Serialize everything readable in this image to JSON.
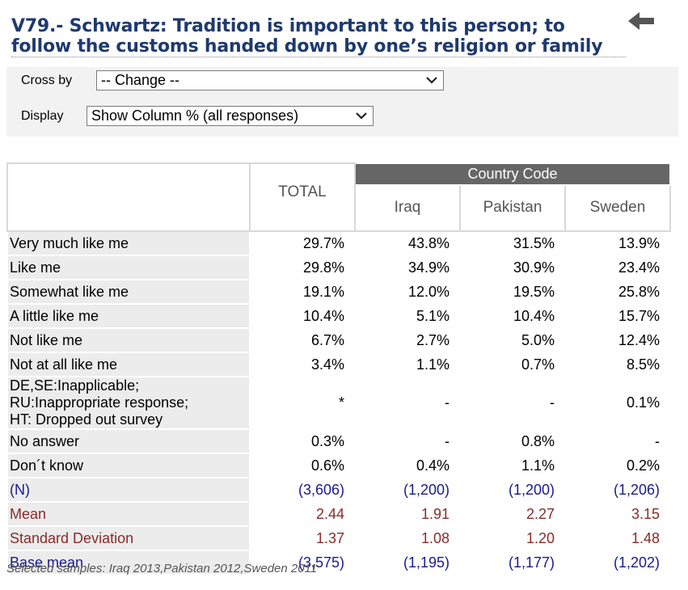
{
  "title": "V79.- Schwartz: Tradition is important to this person; to follow the customs handed down by one’s religion or family",
  "controls": {
    "cross_by_label": "Cross by",
    "cross_by_value": "-- Change --",
    "display_label": "Display",
    "display_value": "Show Column % (all responses)"
  },
  "table": {
    "group_header": "Country Code",
    "total_header": "TOTAL",
    "countries": [
      "Iraq",
      "Pakistan",
      "Sweden"
    ],
    "rows": [
      {
        "label": "Very much like me",
        "total": "29.7%",
        "values": [
          "43.8%",
          "31.5%",
          "13.9%"
        ]
      },
      {
        "label": "Like me",
        "total": "29.8%",
        "values": [
          "34.9%",
          "30.9%",
          "23.4%"
        ]
      },
      {
        "label": "Somewhat like me",
        "total": "19.1%",
        "values": [
          "12.0%",
          "19.5%",
          "25.8%"
        ]
      },
      {
        "label": "A little like me",
        "total": "10.4%",
        "values": [
          "5.1%",
          "10.4%",
          "15.7%"
        ]
      },
      {
        "label": "Not like me",
        "total": "6.7%",
        "values": [
          "2.7%",
          "5.0%",
          "12.4%"
        ]
      },
      {
        "label": "Not at all like me",
        "total": "3.4%",
        "values": [
          "1.1%",
          "0.7%",
          "8.5%"
        ]
      },
      {
        "label_lines": [
          "DE,SE:Inapplicable;",
          "RU:Inappropriate response;",
          "HT: Dropped out survey"
        ],
        "total": "*",
        "values": [
          "-",
          "-",
          "0.1%"
        ]
      },
      {
        "label": "No answer",
        "total": "0.3%",
        "values": [
          "-",
          "0.8%",
          "-"
        ]
      },
      {
        "label": "Don´t know",
        "total": "0.6%",
        "values": [
          "0.4%",
          "1.1%",
          "0.2%"
        ]
      }
    ],
    "n_row": {
      "label": "(N)",
      "total": "(3,606)",
      "values": [
        "(1,200)",
        "(1,200)",
        "(1,206)"
      ]
    },
    "mean_row": {
      "label": "Mean",
      "total": "2.44",
      "values": [
        "1.91",
        "2.27",
        "3.15"
      ]
    },
    "sd_row": {
      "label": "Standard Deviation",
      "total": "1.37",
      "values": [
        "1.08",
        "1.20",
        "1.48"
      ]
    },
    "base_row": {
      "label": "Base mean",
      "total": "(3,575)",
      "values": [
        "(1,195)",
        "(1,177)",
        "(1,202)"
      ]
    }
  },
  "footnote": "Selected samples: Iraq 2013,Pakistan 2012,Sweden 2011",
  "colors": {
    "title": "#1e3a6e",
    "group_header_bg": "#666666",
    "blue_text": "#1a1a8c",
    "red_text": "#8b2a2a"
  }
}
